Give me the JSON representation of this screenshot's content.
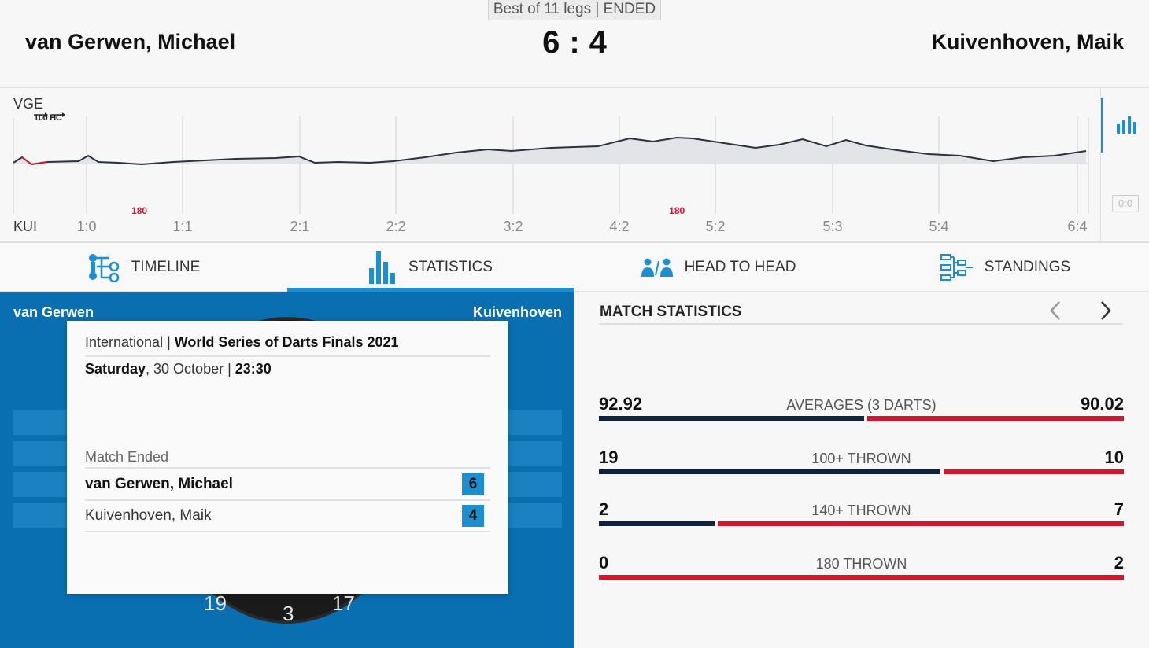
{
  "header": {
    "format": "Best of 11 legs | ENDED",
    "home_player": "van Gerwen, Michael",
    "away_player": "Kuivenhoven, Maik",
    "home_score": "6",
    "away_score": "4",
    "separator": ":"
  },
  "momentum": {
    "home_code": "VGE",
    "away_code": "KUI",
    "legend_label": "100 HC",
    "reset_label": "0:0",
    "leg_scores": [
      "1:0",
      "1:1",
      "2:1",
      "2:2",
      "3:2",
      "4:2",
      "5:2",
      "5:3",
      "5:4",
      "6:4"
    ],
    "markers": [
      {
        "text": "180",
        "after_leg": 0.55
      },
      {
        "text": "180",
        "after_leg": 6.6
      }
    ]
  },
  "tabs": [
    {
      "label": "TIMELINE",
      "icon": "timeline-icon"
    },
    {
      "label": "STATISTICS",
      "icon": "statistics-icon",
      "active": true
    },
    {
      "label": "HEAD TO HEAD",
      "icon": "head-to-head-icon"
    },
    {
      "label": "STANDINGS",
      "icon": "standings-icon"
    }
  ],
  "board_panel": {
    "home_short": "van Gerwen",
    "away_short": "Kuivenhoven",
    "board_numbers": [
      "19",
      "3",
      "17"
    ]
  },
  "match_card": {
    "tournament_prefix": "International | ",
    "tournament_name": "World Series of Darts Finals 2021",
    "day": "Saturday",
    "date": ", 30 October | ",
    "time": "23:30",
    "status": "Match Ended",
    "home_name": "van Gerwen, Michael",
    "home_score": "6",
    "away_name": "Kuivenhoven, Maik",
    "away_score": "4"
  },
  "statistics": {
    "title": "MATCH STATISTICS",
    "rows": [
      {
        "label": "AVERAGES (3 DARTS)",
        "home": "92.92",
        "away": "90.02",
        "home_value": 92.92,
        "away_value": 90.02
      },
      {
        "label": "100+ THROWN",
        "home": "19",
        "away": "10",
        "home_value": 19,
        "away_value": 10
      },
      {
        "label": "140+ THROWN",
        "home": "2",
        "away": "7",
        "home_value": 2,
        "away_value": 7
      },
      {
        "label": "180 THROWN",
        "home": "0",
        "away": "2",
        "home_value": 0,
        "away_value": 2
      }
    ]
  },
  "colors": {
    "accent": "#1a8fd0",
    "home_bar": "#0f2340",
    "away_bar": "#d3172f",
    "panel_blue": "#0a6fb0"
  }
}
